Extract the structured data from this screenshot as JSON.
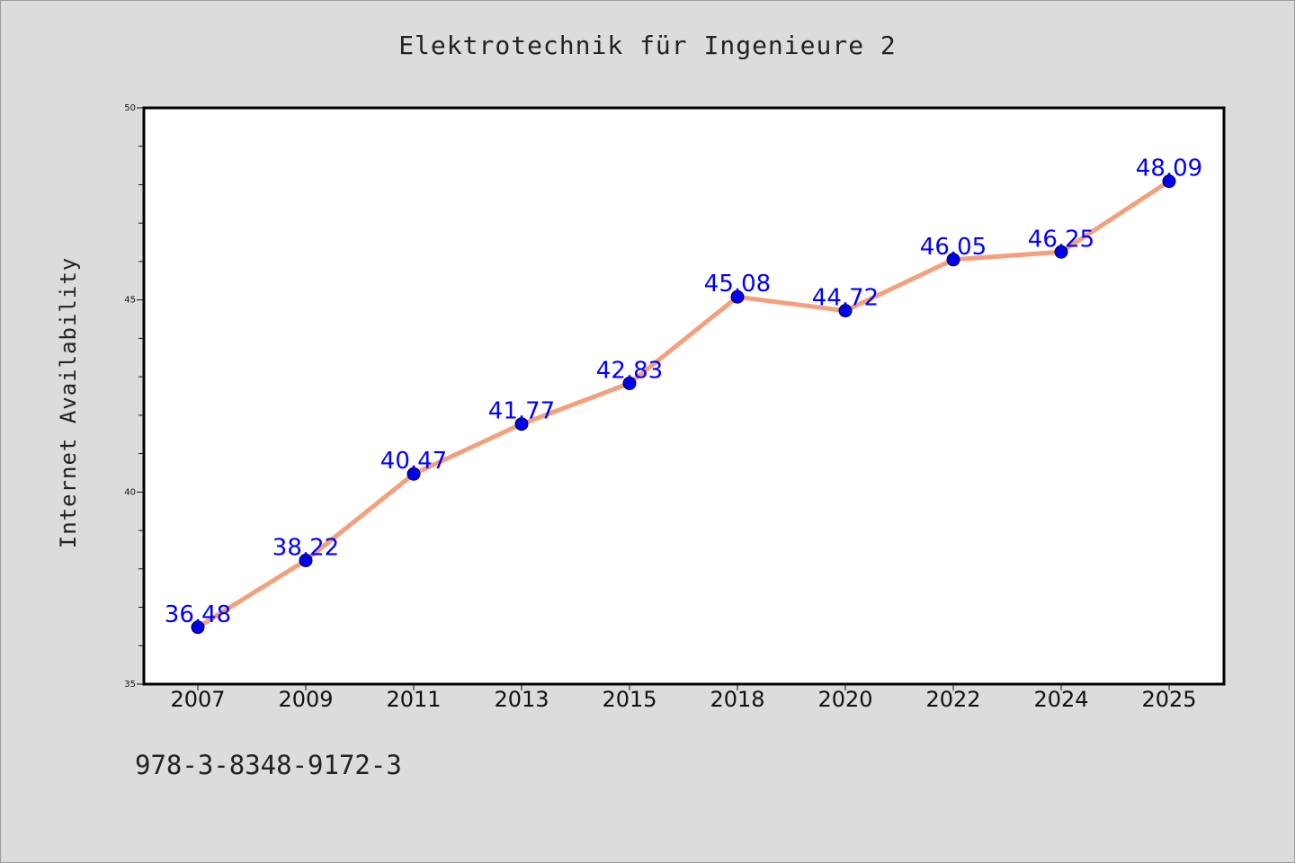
{
  "chart_data": {
    "type": "line",
    "title": "Elektrotechnik für Ingenieure 2",
    "ylabel": "Internet Availability",
    "xlabel": "",
    "categories": [
      "2007",
      "2009",
      "2011",
      "2013",
      "2015",
      "2018",
      "2020",
      "2022",
      "2024",
      "2025"
    ],
    "series": [
      {
        "values": [
          36.48,
          38.22,
          40.47,
          41.77,
          42.83,
          45.08,
          44.72,
          46.05,
          46.25,
          48.09
        ],
        "data_labels": [
          "36.48",
          "38.22",
          "40.47",
          "41.77",
          "42.83",
          "45.08",
          "44.72",
          "46.05",
          "46.25",
          "48.09"
        ],
        "line_color": "#f4a07c",
        "marker_color": "#0000ee"
      }
    ],
    "ylim": [
      35,
      50
    ],
    "yticks": [
      "35",
      "40",
      "45",
      "50"
    ],
    "grid": false,
    "legend": "none"
  },
  "footer": {
    "isbn": "978-3-8348-9172-3"
  },
  "colors": {
    "background": "#dcdcdc",
    "plot_background": "#ffffff",
    "line": "#f4a07c",
    "marker": "#0000ee",
    "data_label": "#0000ff"
  }
}
